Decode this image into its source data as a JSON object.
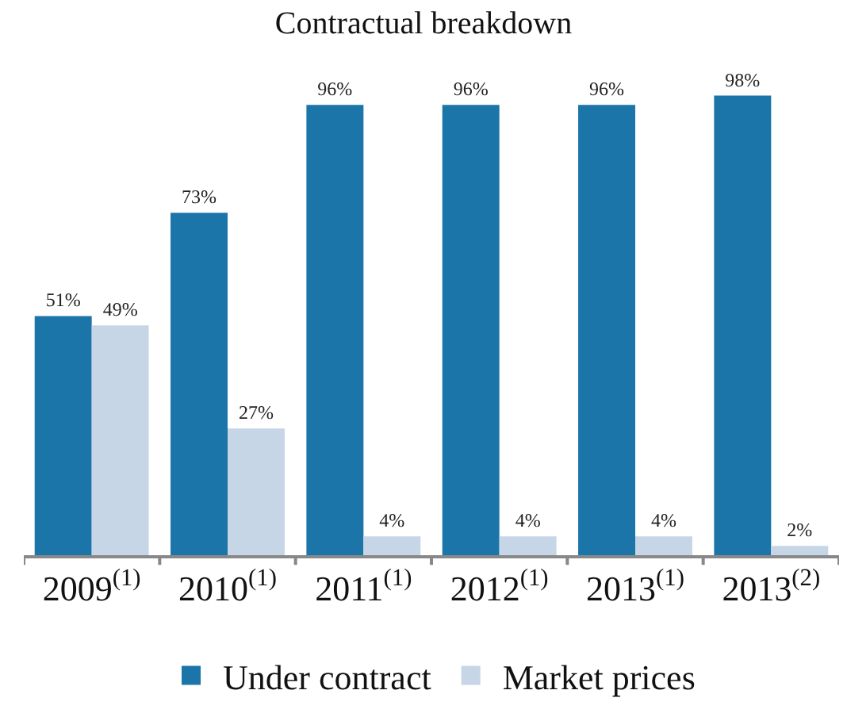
{
  "chart_data": {
    "type": "bar",
    "title": "Contractual breakdown",
    "categories": [
      "2009$^{(1)}$",
      "2010$^{(1)}$",
      "2011$^{(1)}$",
      "2012$^{(1)}$",
      "2013$^{(1)}$",
      "2013$^{(2)}$"
    ],
    "series": [
      {
        "name": "Under contract",
        "color": "#1b75a9",
        "values": [
          51,
          73,
          96,
          96,
          96,
          98
        ],
        "value_labels": [
          "51%",
          "73%",
          "96%",
          "96%",
          "96%",
          "98%"
        ]
      },
      {
        "name": "Market prices",
        "color": "#c6d6e7",
        "values": [
          49,
          27,
          4,
          4,
          4,
          2
        ],
        "value_labels": [
          "49%",
          "27%",
          "4%",
          "4%",
          "4%",
          "2%"
        ]
      }
    ],
    "legend": "bottom"
  }
}
